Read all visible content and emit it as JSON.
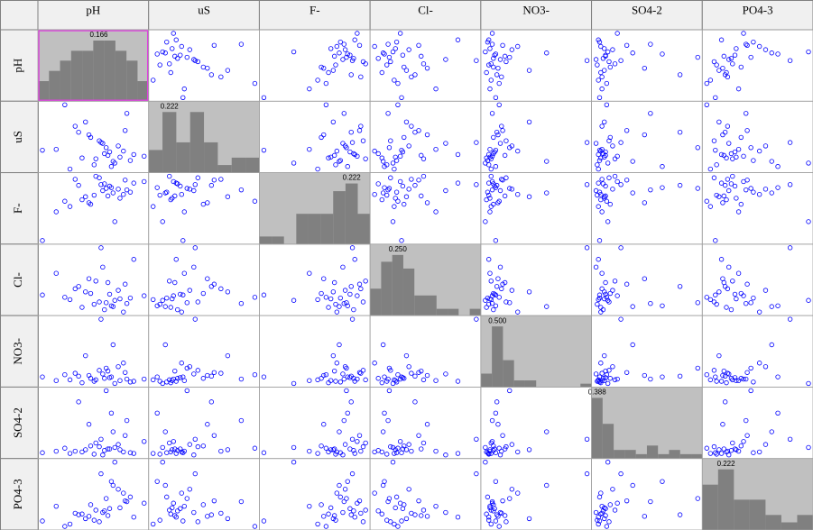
{
  "chart_data": {
    "type": "scatter_matrix",
    "variables": [
      {
        "name": "pH",
        "values": [
          52,
          61,
          45,
          70,
          38,
          66,
          58,
          49,
          73,
          55,
          30,
          62,
          47,
          81,
          57,
          64,
          43,
          69,
          53,
          35,
          59,
          75,
          50,
          63,
          41,
          67,
          56,
          22,
          71,
          60
        ],
        "histogram": {
          "values": [
            0.055,
            0.083,
            0.111,
            0.138,
            0.138,
            0.166,
            0.166,
            0.138,
            0.111,
            0.055
          ],
          "value_labels": [
            null,
            null,
            null,
            null,
            null,
            "0.166",
            null,
            null,
            null,
            null
          ]
        }
      },
      {
        "name": "uS",
        "values": [
          20,
          35,
          28,
          60,
          15,
          42,
          33,
          55,
          25,
          48,
          38,
          18,
          70,
          30,
          45,
          22,
          58,
          36,
          27,
          90,
          40,
          32,
          52,
          24,
          65,
          29,
          46,
          37,
          80,
          31
        ],
        "histogram": {
          "values": [
            0.083,
            0.222,
            0.111,
            0.222,
            0.111,
            0.028,
            0.055,
            0.055
          ],
          "value_labels": [
            null,
            "0.222",
            null,
            null,
            null,
            null,
            null,
            null
          ]
        }
      },
      {
        "name": "F-",
        "values": [
          70,
          82,
          64,
          90,
          55,
          78,
          85,
          60,
          74,
          93,
          48,
          80,
          68,
          88,
          76,
          35,
          83,
          71,
          95,
          62,
          79,
          86,
          58,
          73,
          91,
          66,
          84,
          10,
          77,
          69
        ],
        "histogram": {
          "values": [
            0.028,
            0.028,
            0.0,
            0.111,
            0.111,
            0.111,
            0.194,
            0.222,
            0.111
          ],
          "value_labels": [
            null,
            null,
            null,
            null,
            null,
            null,
            null,
            "0.222",
            null
          ]
        }
      },
      {
        "name": "Cl-",
        "values": [
          22,
          35,
          18,
          48,
          28,
          40,
          15,
          55,
          30,
          25,
          62,
          20,
          38,
          33,
          70,
          27,
          45,
          12,
          52,
          31,
          24,
          80,
          36,
          19,
          42,
          29,
          95,
          34,
          23,
          50
        ],
        "histogram": {
          "values": [
            0.111,
            0.222,
            0.25,
            0.194,
            0.083,
            0.083,
            0.028,
            0.028,
            0.0,
            0.028
          ],
          "value_labels": [
            null,
            null,
            "0.250",
            null,
            null,
            null,
            null,
            null,
            null,
            null
          ]
        }
      },
      {
        "name": "NO3-",
        "values": [
          10,
          15,
          8,
          22,
          12,
          30,
          14,
          18,
          9,
          25,
          11,
          16,
          45,
          13,
          20,
          7,
          17,
          35,
          12,
          19,
          28,
          10,
          14,
          60,
          21,
          11,
          95,
          16,
          13,
          24
        ],
        "histogram": {
          "values": [
            0.111,
            0.5,
            0.222,
            0.055,
            0.055,
            0.0,
            0.0,
            0.0,
            0.0,
            0.028
          ],
          "value_labels": [
            null,
            "0.500",
            null,
            null,
            null,
            null,
            null,
            null,
            null,
            null
          ]
        }
      },
      {
        "name": "SO4-2",
        "values": [
          5,
          12,
          8,
          30,
          6,
          18,
          10,
          45,
          7,
          15,
          9,
          60,
          11,
          22,
          4,
          14,
          75,
          8,
          20,
          13,
          90,
          6,
          16,
          35,
          9,
          11,
          25,
          7,
          50,
          12
        ],
        "histogram": {
          "values": [
            0.388,
            0.222,
            0.055,
            0.055,
            0.028,
            0.083,
            0.028,
            0.055,
            0.028,
            0.028
          ],
          "value_labels": [
            "0.388",
            null,
            null,
            null,
            null,
            null,
            null,
            null,
            null,
            null
          ]
        }
      },
      {
        "name": "PO4-3",
        "values": [
          20,
          35,
          28,
          45,
          15,
          60,
          32,
          25,
          50,
          18,
          38,
          70,
          22,
          42,
          30,
          95,
          27,
          55,
          33,
          12,
          48,
          24,
          40,
          65,
          29,
          36,
          80,
          19,
          44,
          26
        ],
        "histogram": {
          "values": [
            0.166,
            0.222,
            0.111,
            0.111,
            0.055,
            0.028,
            0.055
          ],
          "value_labels": [
            null,
            "0.222",
            null,
            null,
            null,
            null,
            null
          ]
        }
      }
    ]
  }
}
